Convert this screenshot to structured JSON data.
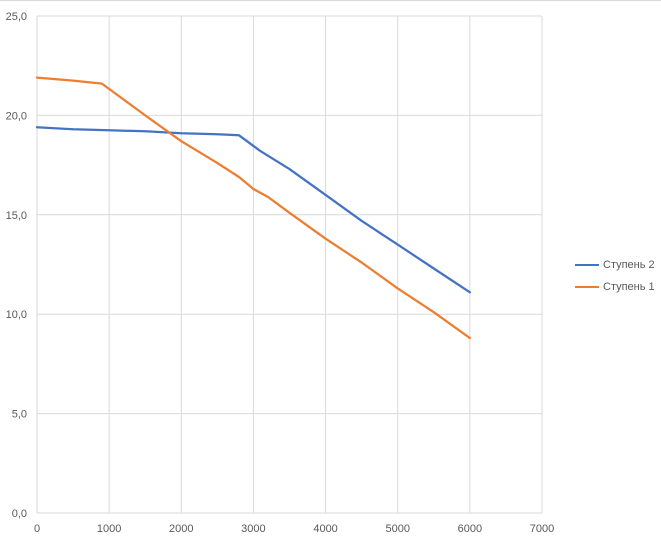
{
  "chart_data": {
    "type": "line",
    "title": "",
    "xlabel": "",
    "ylabel": "",
    "xlim": [
      0,
      7000
    ],
    "ylim": [
      0,
      25
    ],
    "x_ticks": [
      0,
      1000,
      2000,
      3000,
      4000,
      5000,
      6000,
      7000
    ],
    "x_tick_labels": [
      "0",
      "1000",
      "2000",
      "3000",
      "4000",
      "5000",
      "6000",
      "7000"
    ],
    "y_ticks": [
      0,
      5,
      10,
      15,
      20,
      25
    ],
    "y_tick_labels": [
      "0,0",
      "5,0",
      "10,0",
      "15,0",
      "20,0",
      "25,0"
    ],
    "grid": true,
    "legend_position": "right",
    "series": [
      {
        "name": "Ступень 2",
        "color": "#4472C4",
        "points": [
          [
            0,
            19.4
          ],
          [
            500,
            19.3
          ],
          [
            1000,
            19.25
          ],
          [
            1500,
            19.2
          ],
          [
            2000,
            19.1
          ],
          [
            2500,
            19.05
          ],
          [
            2800,
            19.0
          ],
          [
            3100,
            18.2
          ],
          [
            3500,
            17.3
          ],
          [
            4000,
            16.0
          ],
          [
            4500,
            14.7
          ],
          [
            5000,
            13.5
          ],
          [
            5500,
            12.3
          ],
          [
            6000,
            11.1
          ]
        ]
      },
      {
        "name": "Ступень 1",
        "color": "#ED7D31",
        "points": [
          [
            0,
            21.9
          ],
          [
            500,
            21.75
          ],
          [
            900,
            21.6
          ],
          [
            1500,
            20.0
          ],
          [
            2000,
            18.7
          ],
          [
            2500,
            17.6
          ],
          [
            2800,
            16.9
          ],
          [
            3000,
            16.3
          ],
          [
            3200,
            15.9
          ],
          [
            3500,
            15.1
          ],
          [
            4000,
            13.8
          ],
          [
            4500,
            12.6
          ],
          [
            5000,
            11.3
          ],
          [
            5500,
            10.1
          ],
          [
            6000,
            8.8
          ]
        ]
      }
    ]
  }
}
